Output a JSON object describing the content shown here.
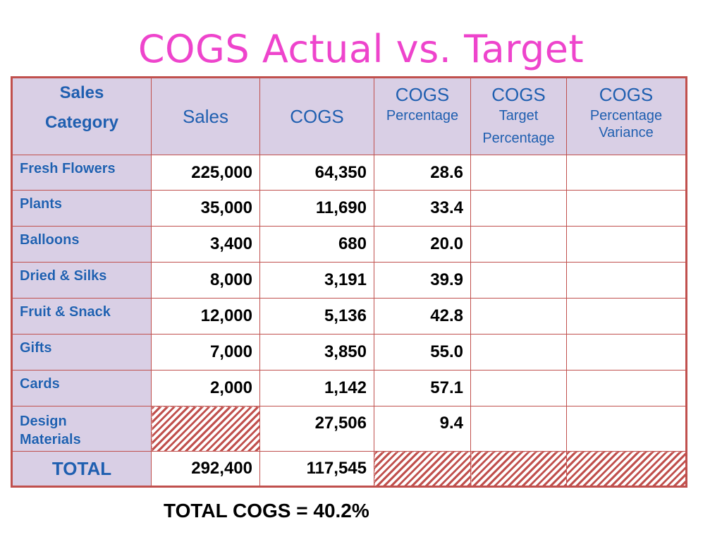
{
  "title": "COGS Actual vs. Target",
  "table": {
    "headers": {
      "category_line1": "Sales",
      "category_line2": "Category",
      "sales": "Sales",
      "cogs": "COGS",
      "cogs_pct_line1": "COGS",
      "cogs_pct_line2": "Percentage",
      "target_line1": "COGS",
      "target_line2": "Target",
      "target_line3": "Percentage",
      "variance_line1": "COGS",
      "variance_line2": "Percentage",
      "variance_line3": "Variance"
    },
    "rows": [
      {
        "category": "Fresh Flowers",
        "sales": "225,000",
        "cogs": "64,350",
        "pct": "28.6"
      },
      {
        "category": "Plants",
        "sales": "35,000",
        "cogs": "11,690",
        "pct": "33.4"
      },
      {
        "category": "Balloons",
        "sales": "3,400",
        "cogs": "680",
        "pct": "20.0"
      },
      {
        "category": "Dried & Silks",
        "sales": "8,000",
        "cogs": "3,191",
        "pct": "39.9"
      },
      {
        "category": "Fruit & Snack",
        "sales": "12,000",
        "cogs": "5,136",
        "pct": "42.8"
      },
      {
        "category": "Gifts",
        "sales": "7,000",
        "cogs": "3,850",
        "pct": "55.0"
      },
      {
        "category": "Cards",
        "sales": "2,000",
        "cogs": "1,142",
        "pct": "57.1"
      }
    ],
    "design_row": {
      "category_line1": "Design",
      "category_line2": "Materials",
      "cogs": "27,506",
      "pct": "9.4"
    },
    "total_row": {
      "label": "TOTAL",
      "sales": "292,400",
      "cogs": "117,545"
    }
  },
  "footnote": "TOTAL COGS = 40.2%",
  "colors": {
    "title": "#ee44cc",
    "border": "#c0504d",
    "header_bg": "#d9cfe5",
    "header_text": "#1f5fb0"
  }
}
